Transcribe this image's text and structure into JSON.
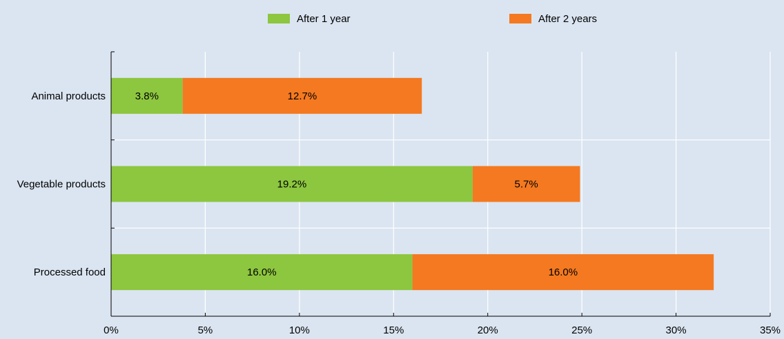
{
  "chart_data": {
    "type": "bar",
    "orientation": "horizontal",
    "stacked": true,
    "categories": [
      "Animal products",
      "Vegetable products",
      "Processed food"
    ],
    "series": [
      {
        "name": "After 1 year",
        "values": [
          3.8,
          19.2,
          16.0
        ],
        "labels": [
          "3.8%",
          "19.2%",
          "16.0%"
        ],
        "color": "#8dc63f"
      },
      {
        "name": "After 2 years",
        "values": [
          12.7,
          5.7,
          16.0
        ],
        "labels": [
          "12.7%",
          "5.7%",
          "16.0%"
        ],
        "color": "#f47920"
      }
    ],
    "x_ticks": [
      0,
      5,
      10,
      15,
      20,
      25,
      30,
      35
    ],
    "x_tick_labels": [
      "0%",
      "5%",
      "10%",
      "15%",
      "20%",
      "25%",
      "30%",
      "35%"
    ],
    "xlim": [
      0,
      35
    ],
    "grid": true,
    "legend_position": "top",
    "title": "",
    "xlabel": "",
    "ylabel": ""
  }
}
